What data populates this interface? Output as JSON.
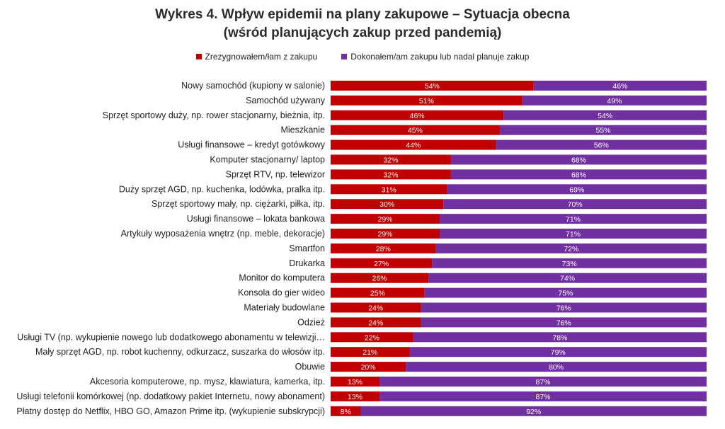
{
  "chart_data": {
    "type": "bar",
    "orientation": "horizontal",
    "stacked": "100%",
    "title_line1": "Wykres 4. Wpływ epidemii na plany zakupowe – Sytuacja obecna",
    "title_line2": "(wśród planujących zakup przed pandemią)",
    "legend_position": "top",
    "grid": false,
    "xlim": [
      0,
      100
    ],
    "categories": [
      "Nowy samochód (kupiony w salonie)",
      "Samochód używany",
      "Sprzęt sportowy duży, np. rower stacjonarny, bieżnia, itp.",
      "Mieszkanie",
      "Usługi finansowe – kredyt gotówkowy",
      "Komputer stacjonarny/ laptop",
      "Sprzęt RTV, np. telewizor",
      "Duży sprzęt AGD, np. kuchenka, lodówka, pralka itp.",
      "Sprzęt sportowy mały, np. ciężarki, piłka, itp.",
      "Usługi finansowe – lokata bankowa",
      "Artykuły wyposażenia wnętrz (np. meble, dekoracje)",
      "Smartfon",
      "Drukarka",
      "Monitor do komputera",
      "Konsola do gier wideo",
      "Materiały budowlane",
      "Odzież",
      "Usługi TV (np. wykupienie nowego lub dodatkowego abonamentu w telewizji…",
      "Mały sprzęt AGD, np. robot kuchenny, odkurzacz, suszarka do włosów itp.",
      "Obuwie",
      "Akcesoria komputerowe, np. mysz, klawiatura, kamerka, itp.",
      "Usługi telefonii komórkowej (np. dodatkowy pakiet Internetu, nowy abonament)",
      "Płatny dostęp do Netflix, HBO GO, Amazon Prime itp. (wykupienie subskrypcji)"
    ],
    "series": [
      {
        "name": "Zrezygnowałem/łam z zakupu",
        "color": "#c00000",
        "values": [
          54,
          51,
          46,
          45,
          44,
          32,
          32,
          31,
          30,
          29,
          29,
          28,
          27,
          26,
          25,
          24,
          24,
          22,
          21,
          20,
          13,
          13,
          8
        ]
      },
      {
        "name": "Dokonałem/am zakupu lub nadal planuje zakup",
        "color": "#7030a0",
        "values": [
          46,
          49,
          54,
          55,
          56,
          68,
          68,
          69,
          70,
          71,
          71,
          72,
          73,
          74,
          75,
          76,
          76,
          78,
          79,
          80,
          87,
          87,
          92
        ]
      }
    ],
    "value_suffix": "%"
  }
}
